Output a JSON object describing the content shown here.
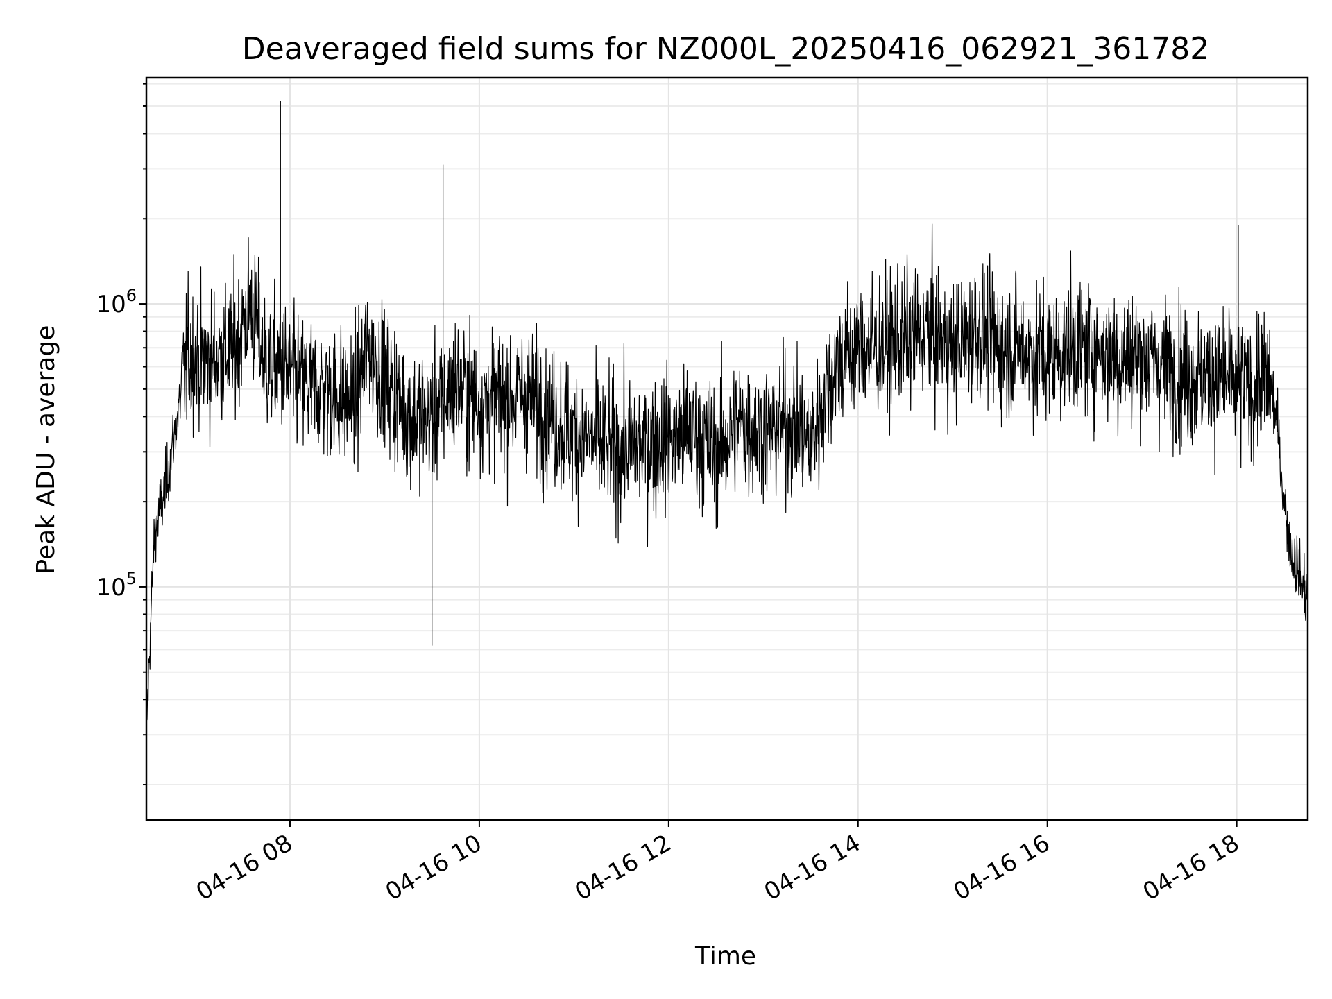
{
  "chart_data": {
    "type": "line",
    "title": "Deaveraged field sums for NZ000L_20250416_062921_361782",
    "xlabel": "Time",
    "ylabel": "Peak ADU - average",
    "yscale": "log",
    "ylim": [
      15000,
      6300000
    ],
    "xlim": [
      "2025-04-16 06:29",
      "2025-04-16 18:45"
    ],
    "x_ticks": [
      "2025-04-16 08:00",
      "2025-04-16 10:00",
      "2025-04-16 12:00",
      "2025-04-16 14:00",
      "2025-04-16 16:00",
      "2025-04-16 18:00"
    ],
    "x_tick_labels": [
      "04-16 08",
      "04-16 10",
      "04-16 12",
      "04-16 14",
      "04-16 16",
      "04-16 18"
    ],
    "y_ticks": [
      {
        "value": 100000,
        "base": "10",
        "exp": "5"
      },
      {
        "value": 1000000,
        "base": "10",
        "exp": "6"
      }
    ],
    "grid": true,
    "line_color": "#000000",
    "series": [
      {
        "x": [
          "2025-04-16 06:29",
          "2025-04-16 06:31",
          "2025-04-16 06:34",
          "2025-04-16 06:37",
          "2025-04-16 06:40",
          "2025-04-16 06:45",
          "2025-04-16 06:50",
          "2025-04-16 06:55",
          "2025-04-16 07:00",
          "2025-04-16 07:05",
          "2025-04-16 07:15",
          "2025-04-16 07:25",
          "2025-04-16 07:35",
          "2025-04-16 07:45",
          "2025-04-16 07:55",
          "2025-04-16 08:05",
          "2025-04-16 08:20",
          "2025-04-16 08:40",
          "2025-04-16 08:50",
          "2025-04-16 09:00",
          "2025-04-16 09:15",
          "2025-04-16 09:30",
          "2025-04-16 09:45",
          "2025-04-16 10:00",
          "2025-04-16 10:15",
          "2025-04-16 10:30",
          "2025-04-16 10:45",
          "2025-04-16 11:00",
          "2025-04-16 11:15",
          "2025-04-16 11:30",
          "2025-04-16 11:45",
          "2025-04-16 12:00",
          "2025-04-16 12:15",
          "2025-04-16 12:30",
          "2025-04-16 12:45",
          "2025-04-16 13:00",
          "2025-04-16 13:15",
          "2025-04-16 13:30",
          "2025-04-16 13:45",
          "2025-04-16 14:00",
          "2025-04-16 14:15",
          "2025-04-16 14:30",
          "2025-04-16 14:45",
          "2025-04-16 15:00",
          "2025-04-16 15:15",
          "2025-04-16 15:30",
          "2025-04-16 15:45",
          "2025-04-16 16:00",
          "2025-04-16 16:15",
          "2025-04-16 16:30",
          "2025-04-16 16:45",
          "2025-04-16 17:00",
          "2025-04-16 17:15",
          "2025-04-16 17:30",
          "2025-04-16 17:45",
          "2025-04-16 18:00",
          "2025-04-16 18:10",
          "2025-04-16 18:20",
          "2025-04-16 18:25",
          "2025-04-16 18:30",
          "2025-04-16 18:35",
          "2025-04-16 18:40",
          "2025-04-16 18:45"
        ],
        "y": [
          30000,
          60000,
          150000,
          180000,
          210000,
          300000,
          450000,
          650000,
          650000,
          620000,
          650000,
          700000,
          1000000,
          600000,
          600000,
          520000,
          500000,
          450000,
          700000,
          550000,
          400000,
          400000,
          520000,
          450000,
          460000,
          480000,
          400000,
          350000,
          320000,
          300000,
          320000,
          330000,
          350000,
          300000,
          380000,
          350000,
          380000,
          320000,
          600000,
          700000,
          700000,
          750000,
          800000,
          700000,
          800000,
          700000,
          700000,
          650000,
          700000,
          700000,
          650000,
          650000,
          600000,
          550000,
          550000,
          520000,
          500000,
          550000,
          400000,
          200000,
          130000,
          110000,
          90000
        ]
      }
    ],
    "annotations": [
      {
        "x": "2025-04-16 07:54",
        "y": 5200000
      },
      {
        "x": "2025-04-16 09:37",
        "y": 3100000
      },
      {
        "x": "2025-04-16 09:30",
        "y": 62000
      },
      {
        "x": "2025-04-16 18:01",
        "y": 1900000
      }
    ]
  }
}
